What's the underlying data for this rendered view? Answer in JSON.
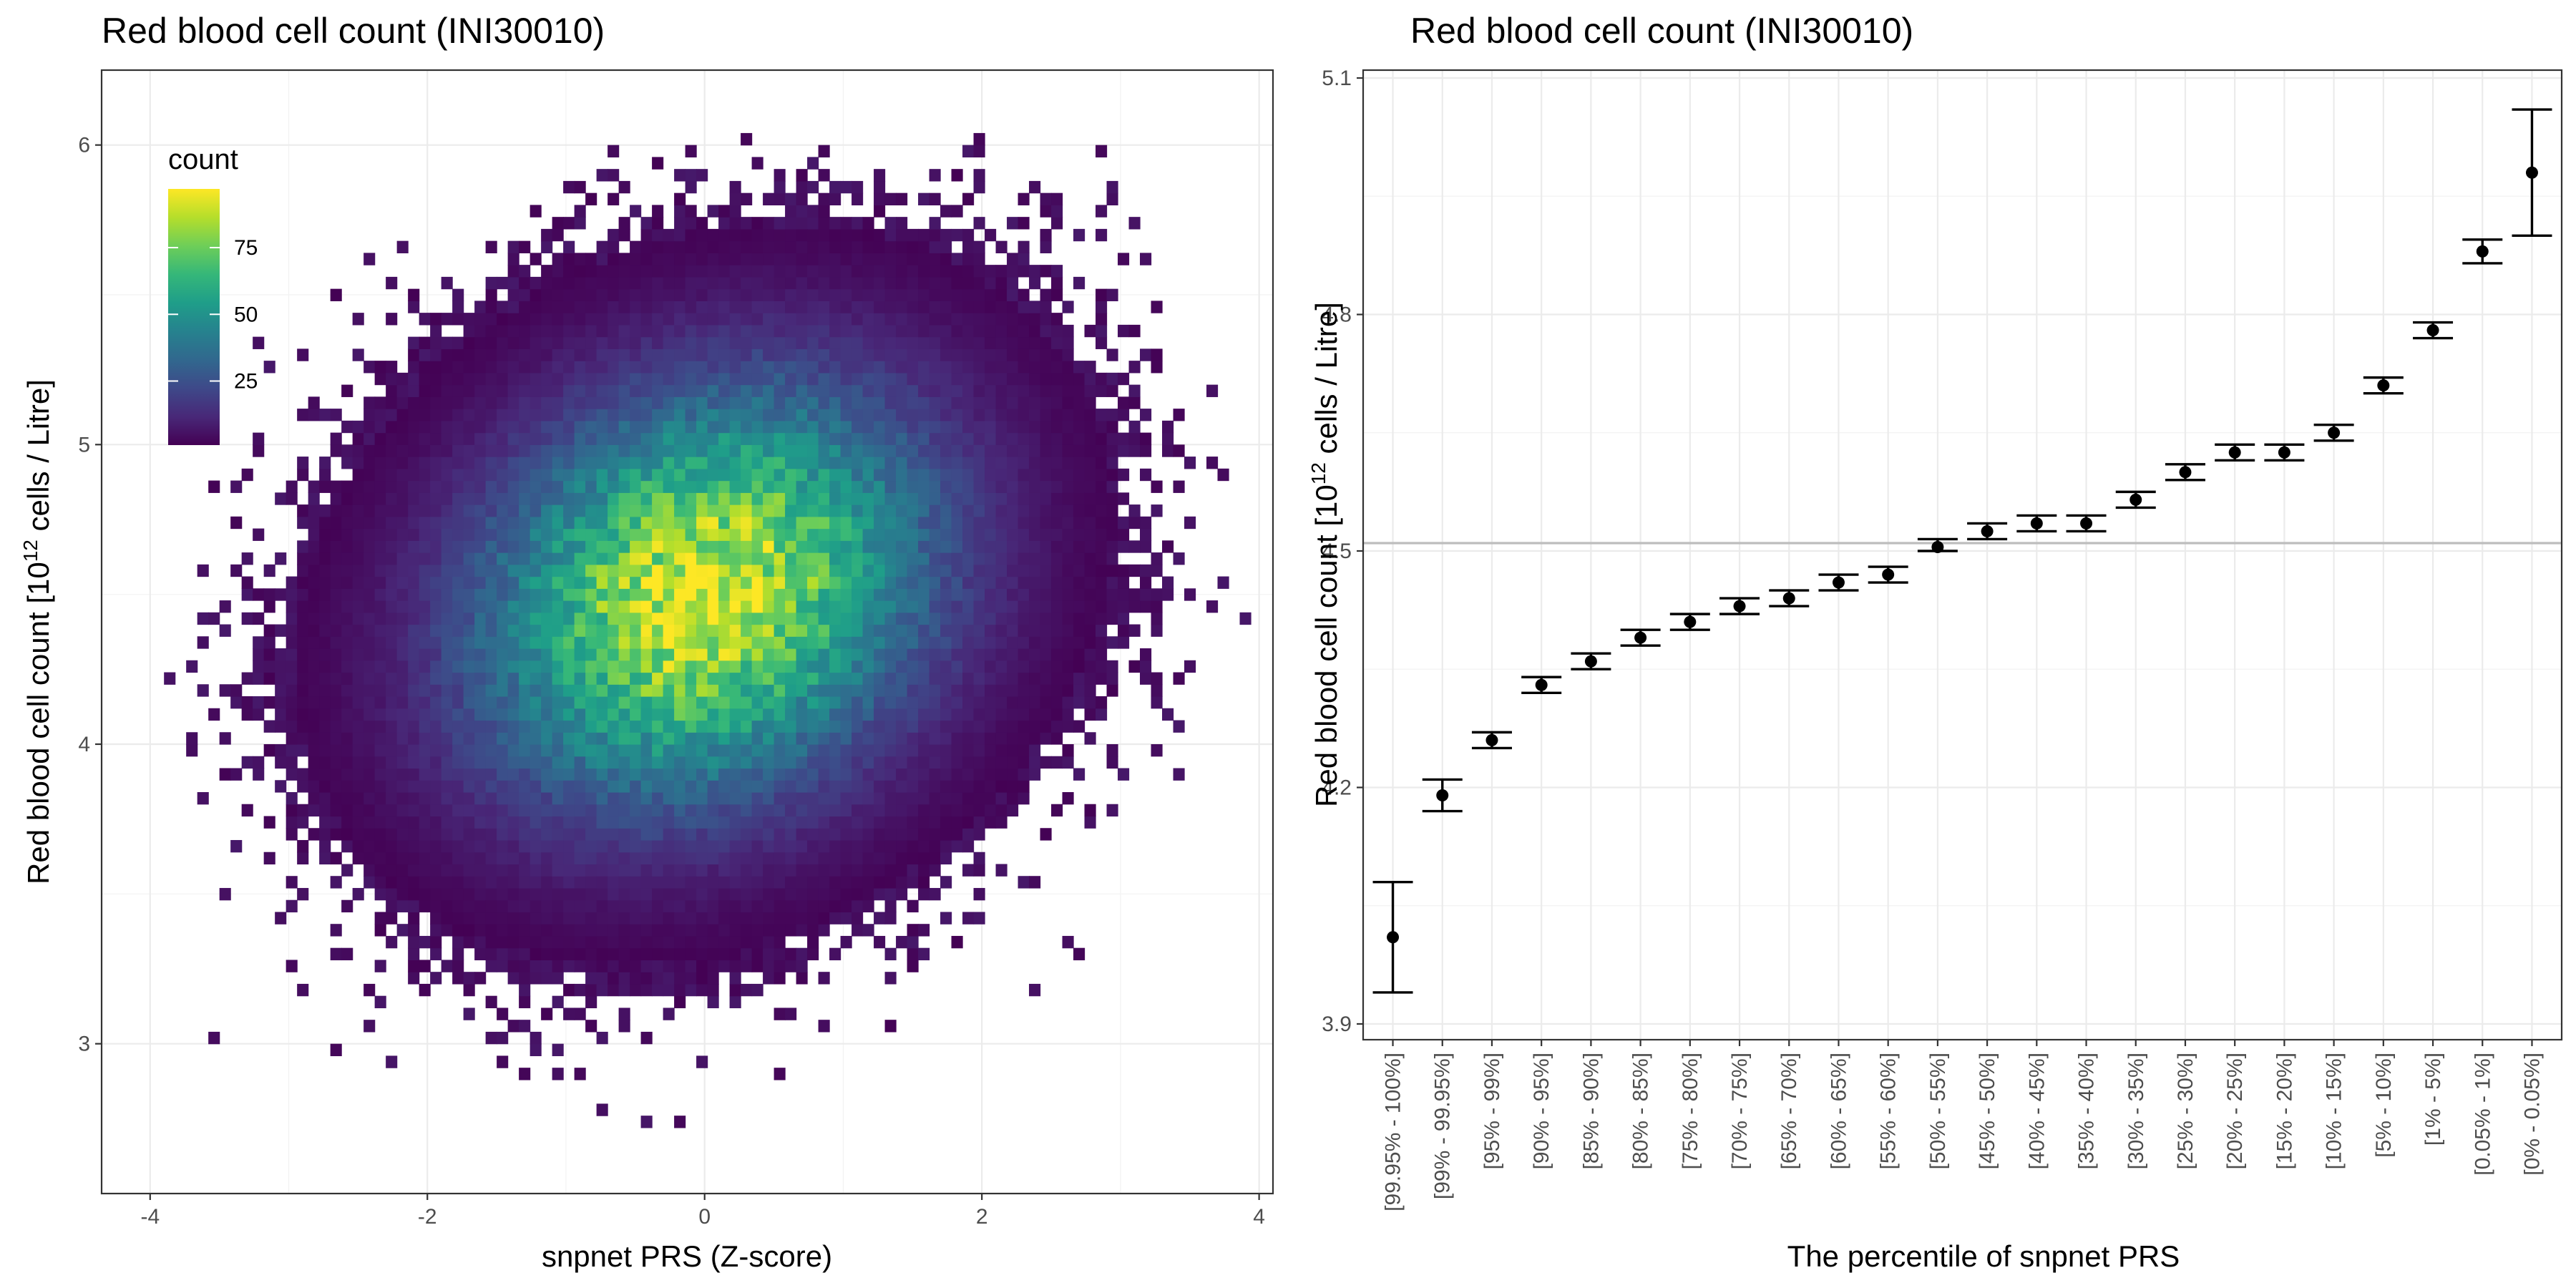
{
  "chart_data": [
    {
      "type": "heatmap",
      "title": "Red blood cell count (INI30010)",
      "xlabel": "snpnet PRS (Z-score)",
      "ylabel": "Red blood cell count [10^12 cells / Litre]",
      "ylabel_parts": {
        "before": "Red blood cell count [10",
        "sup": "12",
        "after": " cells / Litre]"
      },
      "xlim": [
        -4.35,
        4.1
      ],
      "ylim": [
        2.5,
        6.25
      ],
      "xticks": [
        -4,
        -2,
        0,
        2,
        4
      ],
      "xtick_labels": [
        "-4",
        "-2",
        "0",
        "2",
        "4"
      ],
      "yticks": [
        3,
        4,
        5,
        6
      ],
      "ytick_labels": [
        "3",
        "4",
        "5",
        "6"
      ],
      "grid": true,
      "legend": {
        "title": "count",
        "position": "top-left inside",
        "breaks": [
          25,
          50,
          75
        ],
        "break_labels": [
          "25",
          "50",
          "75"
        ],
        "range": [
          1,
          97
        ]
      },
      "density_model": {
        "x_mean": 0.0,
        "x_sd": 1.0,
        "y_mean": 4.5,
        "y_sd": 0.42,
        "correlation": 0.2,
        "peak_count": 92,
        "bin_width_x": 0.08,
        "bin_height_y": 0.04
      },
      "colorscale": [
        "#440154",
        "#482878",
        "#3e4989",
        "#31688e",
        "#26828e",
        "#1f9e89",
        "#35b779",
        "#6ece58",
        "#b5de2b",
        "#fde725"
      ]
    },
    {
      "type": "errorbar",
      "title": "Red blood cell count (INI30010)",
      "xlabel": "The percentile of snpnet PRS",
      "ylabel": "Red blood cell count [10^12 cells / Litre]",
      "ylabel_parts": {
        "before": "Red blood cell count [10",
        "sup": "12",
        "after": " cells / Litre]"
      },
      "ylim": [
        3.88,
        5.11
      ],
      "yticks": [
        3.9,
        4.2,
        4.5,
        4.8,
        5.1
      ],
      "ytick_labels": [
        "3.9",
        "4.2",
        "4.5",
        "4.8",
        "5.1"
      ],
      "hline": 4.51,
      "grid": true,
      "categories": [
        "[99.95% - 100%]",
        "[99% - 99.95%]",
        "[95% - 99%]",
        "[90% - 95%]",
        "[85% - 90%]",
        "[80% - 85%]",
        "[75% - 80%]",
        "[70% - 75%]",
        "[65% - 70%]",
        "[60% - 65%]",
        "[55% - 60%]",
        "[50% - 55%]",
        "[45% - 50%]",
        "[40% - 45%]",
        "[35% - 40%]",
        "[30% - 35%]",
        "[25% - 30%]",
        "[20% - 25%]",
        "[15% - 20%]",
        "[10% - 15%]",
        "[5% - 10%]",
        "[1% - 5%]",
        "[0.05% - 1%]",
        "[0% - 0.05%]"
      ],
      "values": [
        4.01,
        4.19,
        4.26,
        4.33,
        4.36,
        4.39,
        4.41,
        4.43,
        4.44,
        4.46,
        4.47,
        4.505,
        4.525,
        4.535,
        4.535,
        4.565,
        4.6,
        4.625,
        4.625,
        4.65,
        4.71,
        4.78,
        4.88,
        4.98
      ],
      "lower": [
        3.94,
        4.17,
        4.25,
        4.32,
        4.35,
        4.38,
        4.4,
        4.42,
        4.43,
        4.45,
        4.46,
        4.5,
        4.515,
        4.525,
        4.525,
        4.555,
        4.59,
        4.615,
        4.615,
        4.64,
        4.7,
        4.77,
        4.865,
        4.9
      ],
      "upper": [
        4.08,
        4.21,
        4.27,
        4.34,
        4.37,
        4.4,
        4.42,
        4.44,
        4.45,
        4.47,
        4.48,
        4.515,
        4.535,
        4.545,
        4.545,
        4.575,
        4.61,
        4.635,
        4.635,
        4.66,
        4.72,
        4.79,
        4.895,
        5.06
      ]
    }
  ]
}
